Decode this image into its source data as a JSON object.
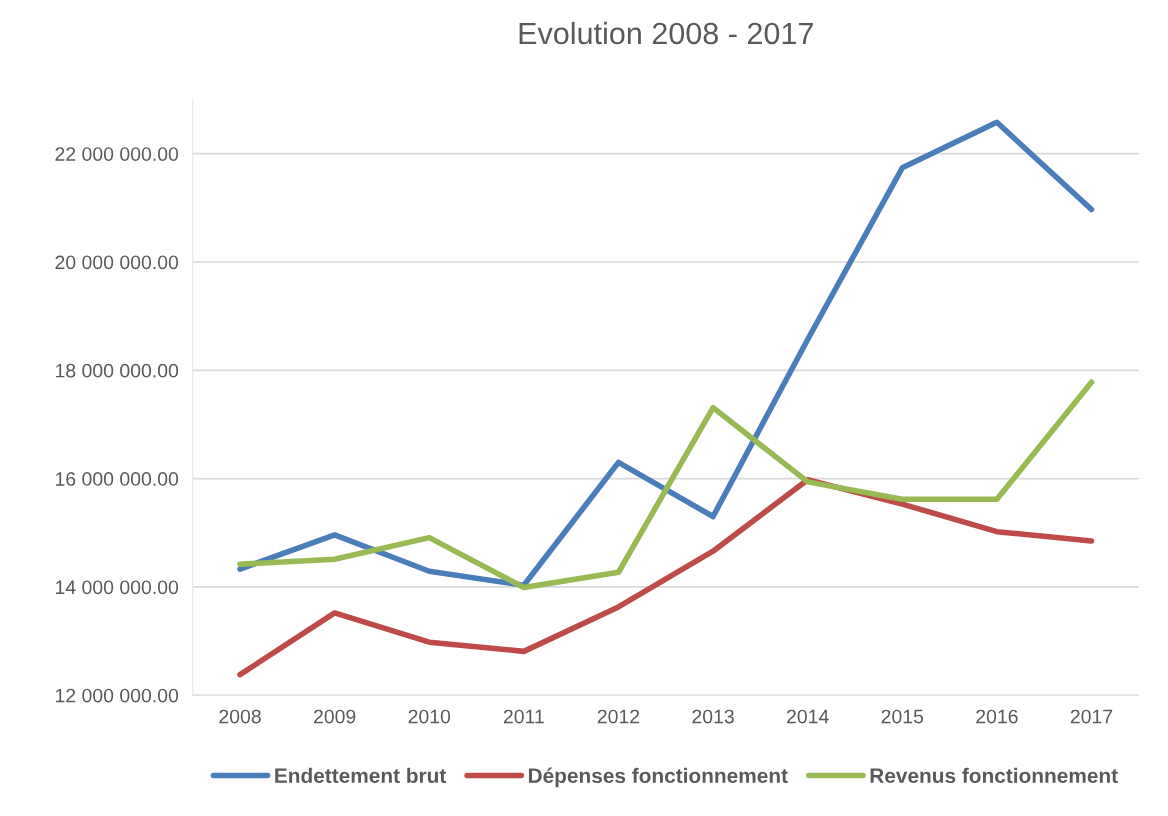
{
  "chart_data": {
    "type": "line",
    "title": "Evolution 2008 - 2017",
    "categories": [
      "2008",
      "2009",
      "2010",
      "2011",
      "2012",
      "2013",
      "2014",
      "2015",
      "2016",
      "2017"
    ],
    "series": [
      {
        "name": "Endettement brut",
        "color": "#4a7ebb",
        "values": [
          14330000,
          14960000,
          14290000,
          14030000,
          16300000,
          15300000,
          18570000,
          21740000,
          22580000,
          20970000
        ]
      },
      {
        "name": "Dépenses fonctionnement",
        "color": "#be4b48",
        "values": [
          12380000,
          13520000,
          12980000,
          12810000,
          13630000,
          14660000,
          15980000,
          15530000,
          15020000,
          14850000
        ]
      },
      {
        "name": "Revenus fonctionnement",
        "color": "#98b954",
        "values": [
          14420000,
          14510000,
          14910000,
          13990000,
          14270000,
          17310000,
          15940000,
          15620000,
          15620000,
          17780000
        ]
      }
    ],
    "ylim": [
      12000000,
      23000000
    ],
    "yticks": [
      {
        "value": 12000000,
        "label": "12 000 000.00"
      },
      {
        "value": 14000000,
        "label": "14 000 000.00"
      },
      {
        "value": 16000000,
        "label": "16 000 000.00"
      },
      {
        "value": 18000000,
        "label": "18 000 000.00"
      },
      {
        "value": 20000000,
        "label": "20 000 000.00"
      },
      {
        "value": 22000000,
        "label": "22 000 000.00"
      }
    ],
    "grid": "y",
    "legend": "bottom",
    "marker": "none",
    "line_style": "solid"
  }
}
